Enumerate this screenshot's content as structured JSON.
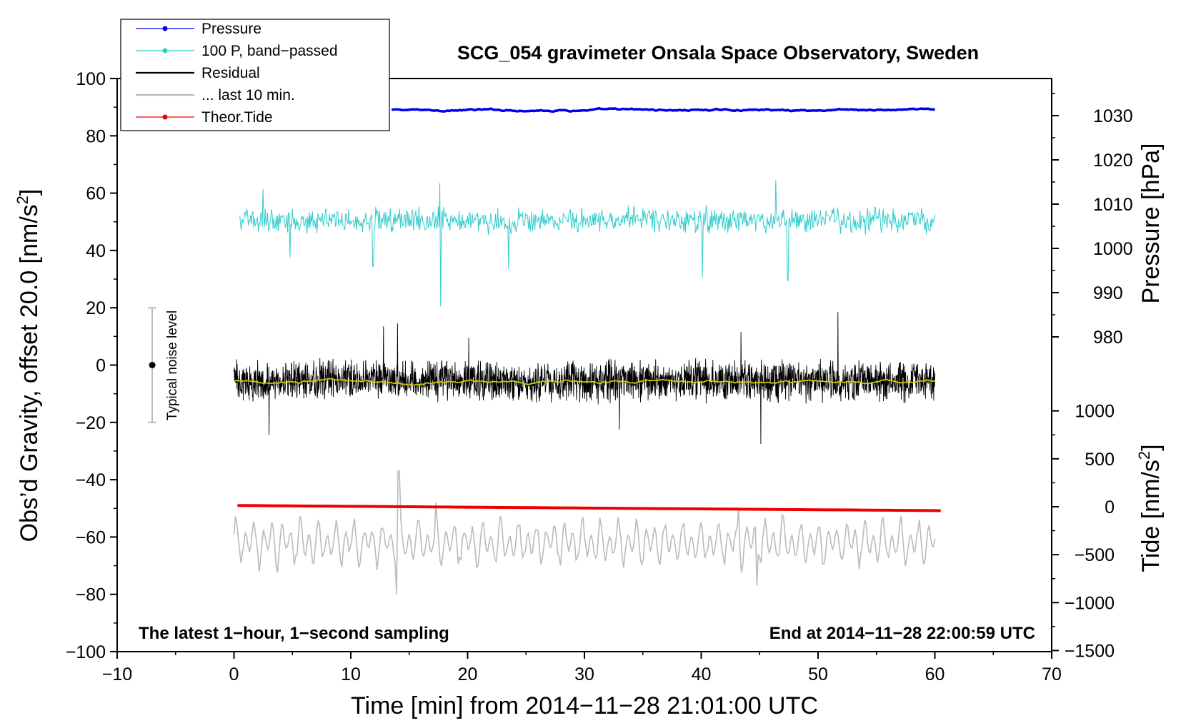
{
  "chart_data": {
    "type": "line",
    "title": "SCG_054 gravimeter Onsala Space Observatory, Sweden",
    "xlabel": "Time [min] from 2014−11−28 21:01:00 UTC",
    "ylabel_base": "Obs’d Gravity, offset 20.0 [nm/s",
    "ylabel_sup": "2",
    "ylabel_end": "]",
    "xlim": [
      -10,
      70
    ],
    "ylim": [
      -100,
      100
    ],
    "xticks": [
      -10,
      0,
      10,
      20,
      30,
      40,
      50,
      60,
      70
    ],
    "yticks": [
      -100,
      -80,
      -60,
      -40,
      -20,
      0,
      20,
      40,
      60,
      80,
      100
    ],
    "right_axis_pressure": {
      "label": "Pressure [hPa]",
      "ticks": [
        980,
        990,
        1000,
        1010,
        1020,
        1030
      ]
    },
    "right_axis_tide": {
      "label_base": "Tide [nm/s",
      "label_sup": "2",
      "label_end": "]",
      "ticks": [
        -1500,
        -1000,
        -500,
        0,
        500,
        1000
      ]
    },
    "legend": [
      {
        "label": "Pressure",
        "color": "#0000ee",
        "marker": true
      },
      {
        "label": "100 P, band−passed",
        "color": "#33cccc",
        "marker": true
      },
      {
        "label": "Residual",
        "color": "#000000",
        "marker": false
      },
      {
        "label": "... last 10 min.",
        "color": "#bbbbbb",
        "marker": false
      },
      {
        "label": "Theor.Tide",
        "color": "#ee0000",
        "marker": true
      }
    ],
    "annotations": {
      "left": "The latest 1−hour, 1−second sampling",
      "right": "End at 2014−11−28 22:00:59 UTC",
      "noise": "Typical noise level"
    },
    "noise_bar": {
      "x": -7,
      "center": 0,
      "low": -20,
      "high": 20
    },
    "series": [
      {
        "name": "Pressure",
        "color": "#0000ee",
        "x_range": [
          13.5,
          60
        ],
        "level": 89,
        "amp": 0.3
      },
      {
        "name": "100 P, band−passed",
        "color": "#33cccc",
        "x_range": [
          0.5,
          60
        ],
        "level": 50.5,
        "amp": 4.5,
        "spikes": [
          [
            17.7,
            -30
          ],
          [
            17.6,
            13
          ],
          [
            23.5,
            -17
          ],
          [
            40.1,
            -20
          ],
          [
            47.4,
            -21
          ],
          [
            46.4,
            14
          ],
          [
            11.9,
            -16
          ],
          [
            4.8,
            -13
          ],
          [
            2.5,
            11
          ]
        ]
      },
      {
        "name": "Residual",
        "color": "#000000",
        "x_range": [
          0,
          60
        ],
        "level": -5.5,
        "amp": 7,
        "spikes": [
          [
            45.1,
            -22
          ],
          [
            51.7,
            24
          ],
          [
            14.0,
            20
          ],
          [
            12.8,
            19
          ],
          [
            43.4,
            17
          ],
          [
            3.0,
            -19
          ],
          [
            20.1,
            15
          ],
          [
            33.0,
            -17
          ]
        ]
      },
      {
        "name": "Residual smoothed",
        "color": "#cccc00",
        "x_range": [
          0,
          60
        ],
        "level": -5.8,
        "amp": 0.6
      },
      {
        "name": "... last 10 min.",
        "color": "#bbbbbb",
        "x_range": [
          0,
          60
        ],
        "level": -62,
        "amp": 6,
        "spikes": [
          [
            14.1,
            25
          ],
          [
            13.9,
            -18
          ],
          [
            17.3,
            14
          ],
          [
            43.2,
            12
          ],
          [
            44.8,
            -15
          ]
        ]
      },
      {
        "name": "Theor.Tide",
        "color": "#ee0000",
        "x_range": [
          0.3,
          60.5
        ],
        "start": -49,
        "end": -50.8
      }
    ]
  }
}
